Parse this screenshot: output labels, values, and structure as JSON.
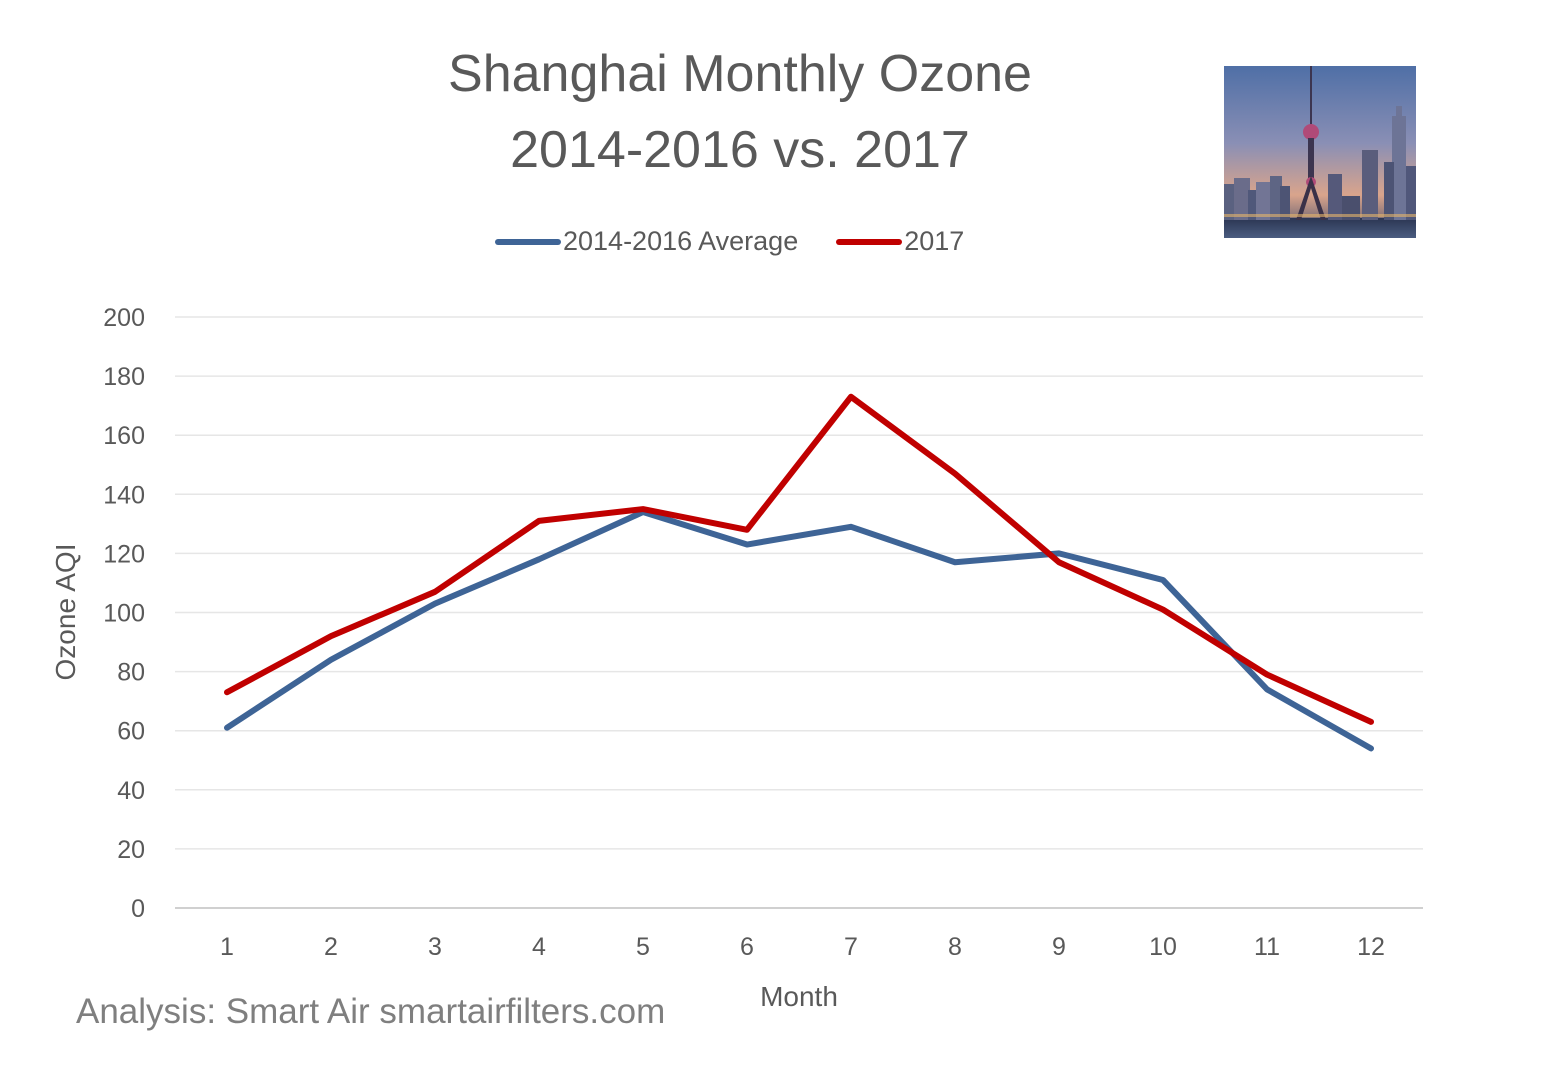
{
  "title": {
    "line1": "Shanghai Monthly Ozone",
    "line2": "2014-2016 vs. 2017"
  },
  "footer": "Analysis: Smart Air smartairfilters.com",
  "colors": {
    "series_blue": "#3e6496",
    "series_red": "#c00000",
    "grid": "#e6e6e6",
    "axis_text": "#595959"
  },
  "chart_data": {
    "type": "line",
    "xlabel": "Month",
    "ylabel": "Ozone AQI",
    "ylim": [
      0,
      200
    ],
    "yticks": [
      0,
      20,
      40,
      60,
      80,
      100,
      120,
      140,
      160,
      180,
      200
    ],
    "grid": true,
    "legend_position": "top",
    "categories": [
      "1",
      "2",
      "3",
      "4",
      "5",
      "6",
      "7",
      "8",
      "9",
      "10",
      "11",
      "12"
    ],
    "series": [
      {
        "name": "2014-2016 Average",
        "color": "#3e6496",
        "values": [
          61,
          84,
          103,
          118,
          134,
          123,
          129,
          117,
          120,
          111,
          74,
          54
        ]
      },
      {
        "name": "2017",
        "color": "#c00000",
        "values": [
          73,
          92,
          107,
          131,
          135,
          128,
          173,
          147,
          117,
          101,
          79,
          63
        ]
      }
    ]
  }
}
